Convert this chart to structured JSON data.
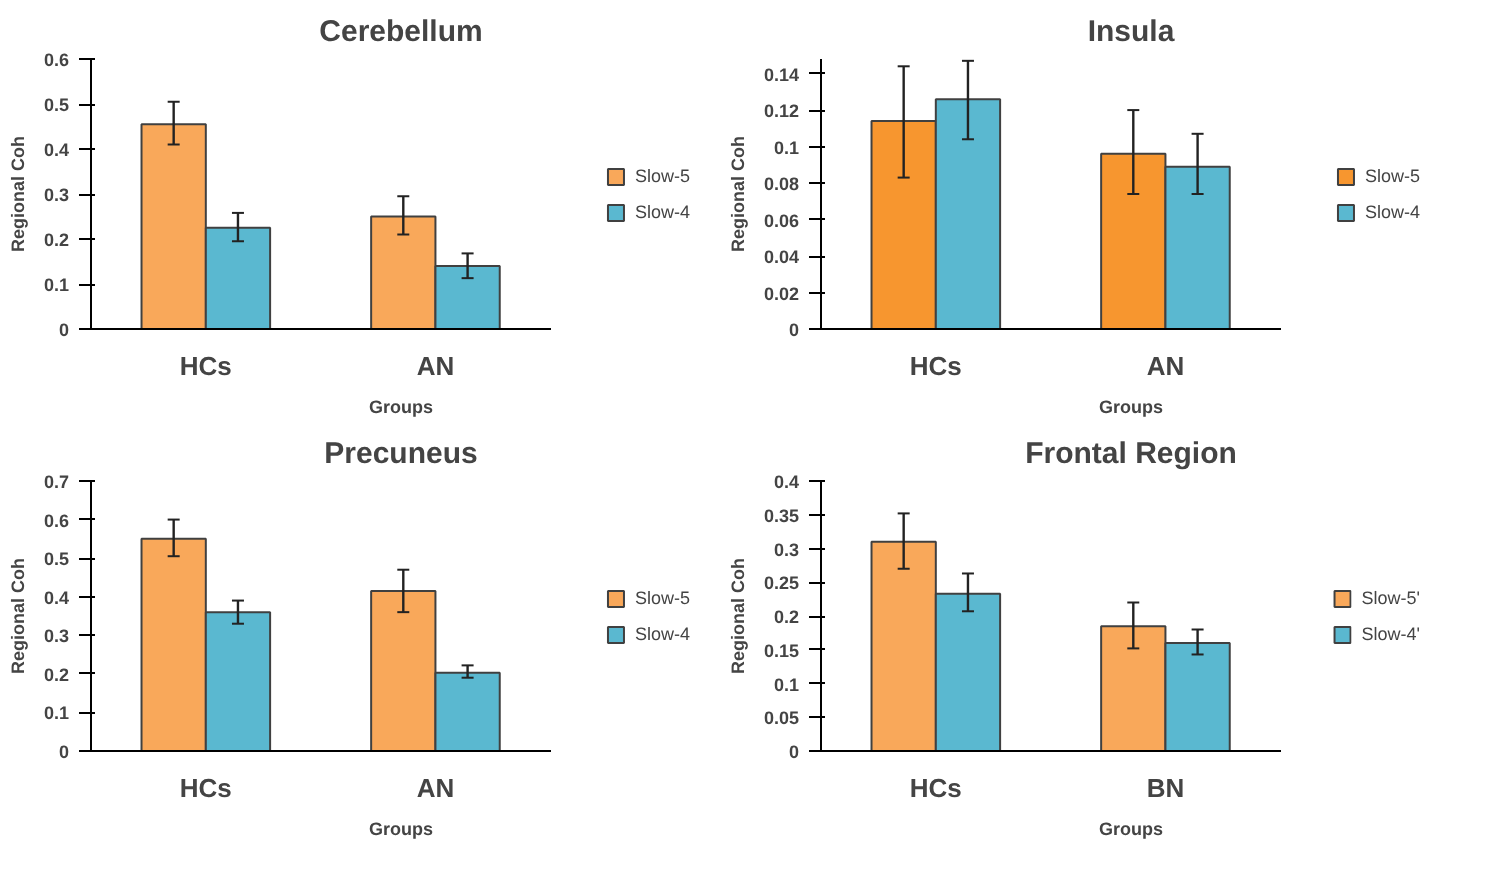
{
  "chart_data": [
    {
      "type": "bar",
      "title": "Cerebellum",
      "xlabel": "Groups",
      "ylabel": "Regional Coh",
      "categories": [
        "HCs",
        "AN"
      ],
      "ylim": [
        0,
        0.6
      ],
      "yticks": [
        0,
        0.1,
        0.2,
        0.3,
        0.4,
        0.5,
        0.6
      ],
      "grid": false,
      "legend": "right",
      "series": [
        {
          "name": "Slow-5",
          "color": "#f9a85a",
          "values": [
            0.455,
            0.25
          ],
          "errors": [
            [
              0.41,
              0.505
            ],
            [
              0.21,
              0.295
            ]
          ]
        },
        {
          "name": "Slow-4",
          "color": "#5ab8d0",
          "values": [
            0.225,
            0.14
          ],
          "errors": [
            [
              0.195,
              0.258
            ],
            [
              0.113,
              0.168
            ]
          ]
        }
      ]
    },
    {
      "type": "bar",
      "title": "Insula",
      "xlabel": "Groups",
      "ylabel": "Regional Coh",
      "categories": [
        "HCs",
        "AN"
      ],
      "ylim": [
        0,
        0.148
      ],
      "yticks": [
        0,
        0.02,
        0.04,
        0.06,
        0.08,
        0.1,
        0.12,
        0.14
      ],
      "grid": false,
      "legend": "right",
      "series": [
        {
          "name": "Slow-5",
          "color": "#f7962f",
          "values": [
            0.114,
            0.096
          ],
          "errors": [
            [
              0.083,
              0.144
            ],
            [
              0.074,
              0.12
            ]
          ]
        },
        {
          "name": "Slow-4",
          "color": "#5ab8d0",
          "values": [
            0.126,
            0.089
          ],
          "errors": [
            [
              0.104,
              0.147
            ],
            [
              0.074,
              0.107
            ]
          ]
        }
      ]
    },
    {
      "type": "bar",
      "title": "Precuneus",
      "xlabel": "Groups",
      "ylabel": "Regional Coh",
      "categories": [
        "HCs",
        "AN"
      ],
      "ylim": [
        0,
        0.7
      ],
      "yticks": [
        0,
        0.1,
        0.2,
        0.3,
        0.4,
        0.5,
        0.6,
        0.7
      ],
      "grid": false,
      "legend": "right",
      "series": [
        {
          "name": "Slow-5",
          "color": "#f9a85a",
          "values": [
            0.55,
            0.415
          ],
          "errors": [
            [
              0.505,
              0.6
            ],
            [
              0.36,
              0.47
            ]
          ]
        },
        {
          "name": "Slow-4",
          "color": "#5ab8d0",
          "values": [
            0.36,
            0.203
          ],
          "errors": [
            [
              0.33,
              0.39
            ],
            [
              0.19,
              0.222
            ]
          ]
        }
      ]
    },
    {
      "type": "bar",
      "title": "Frontal Region",
      "xlabel": "Groups",
      "ylabel": "Regional Coh",
      "categories": [
        "HCs",
        "BN"
      ],
      "ylim": [
        0,
        0.4
      ],
      "yticks": [
        0,
        0.05,
        0.1,
        0.15,
        0.2,
        0.25,
        0.3,
        0.35,
        0.4
      ],
      "grid": false,
      "legend": "right",
      "series": [
        {
          "name": "Slow-5'",
          "color": "#f9a85a",
          "values": [
            0.31,
            0.185
          ],
          "errors": [
            [
              0.27,
              0.352
            ],
            [
              0.152,
              0.22
            ]
          ]
        },
        {
          "name": "Slow-4'",
          "color": "#5ab8d0",
          "values": [
            0.233,
            0.16
          ],
          "errors": [
            [
              0.207,
              0.263
            ],
            [
              0.143,
              0.18
            ]
          ]
        }
      ]
    }
  ]
}
